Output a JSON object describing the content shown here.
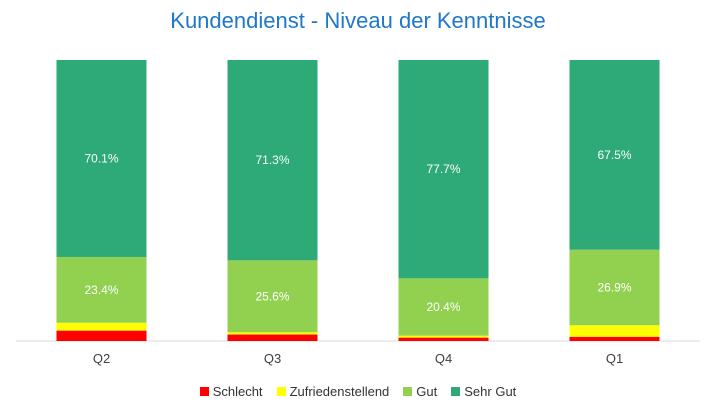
{
  "chart_data": {
    "type": "bar",
    "stacked": "percent",
    "title": "Kundendienst - Niveau der Kenntnisse",
    "categories": [
      "Q2",
      "Q3",
      "Q4",
      "Q1"
    ],
    "series": [
      {
        "name": "Schlecht",
        "color": "#ff0000",
        "values": [
          3.7,
          2.3,
          1.2,
          1.5
        ]
      },
      {
        "name": "Zufriedenstellend",
        "color": "#ffff00",
        "values": [
          2.8,
          0.8,
          0.7,
          4.1
        ]
      },
      {
        "name": "Gut",
        "color": "#92d050",
        "values": [
          23.4,
          25.6,
          20.4,
          26.9
        ]
      },
      {
        "name": "Sehr Gut",
        "color": "#2eaa76",
        "values": [
          70.1,
          71.3,
          77.7,
          67.5
        ]
      }
    ],
    "data_labels": {
      "Gut": [
        "23.4%",
        "25.6%",
        "20.4%",
        "26.9%"
      ],
      "Sehr Gut": [
        "70.1%",
        "71.3%",
        "77.7%",
        "67.5%"
      ]
    },
    "ylim": [
      0,
      100
    ],
    "legend_position": "bottom",
    "grid": false
  }
}
